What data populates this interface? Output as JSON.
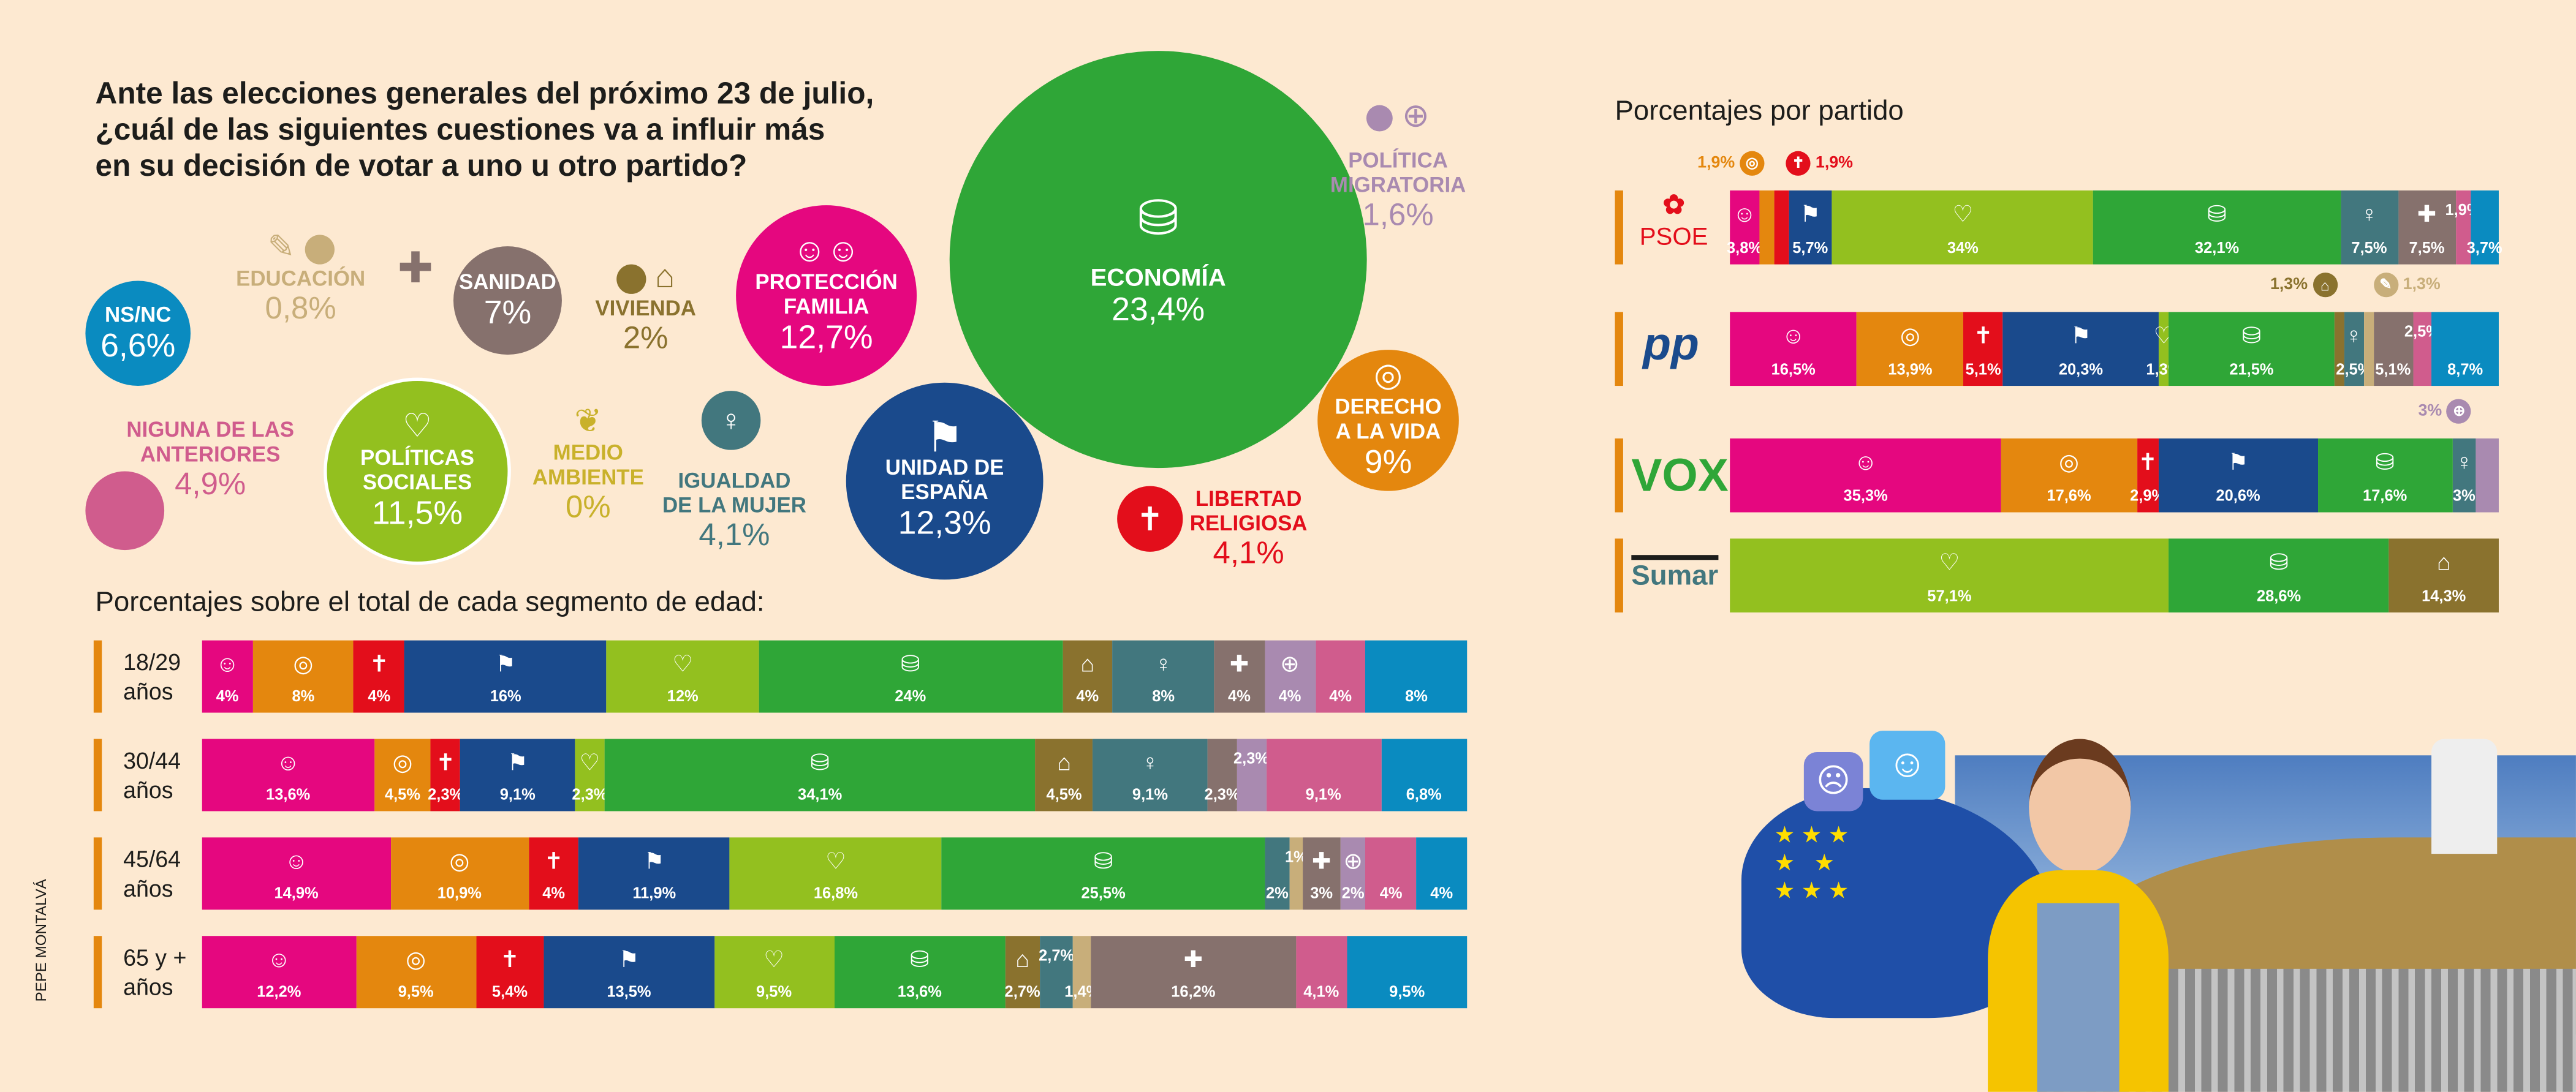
{
  "title": [
    "Ante las elecciones generales del próximo 23 de julio,",
    "¿cuál de las siguientes cuestiones va a influir más",
    "en su decisión de votar a uno u otro partido?"
  ],
  "colors": {
    "familia": "#e5077f",
    "vida": "#e4870e",
    "religiosa": "#e30e1b",
    "unidad": "#1a4a8c",
    "sociales": "#93c01f",
    "economia": "#2fa637",
    "vivienda": "#8a722e",
    "igualdad": "#42777e",
    "educacion": "#c8ae7a",
    "sanidad": "#86716d",
    "migratoria": "#a98ab0",
    "ninguna": "#d05c8d",
    "nsnc": "#0a8bc0",
    "medio": "#c9b12b"
  },
  "icons": {
    "familia": "☺",
    "vida": "◎",
    "religiosa": "✝",
    "unidad": "⚑",
    "sociales": "♡",
    "economia": "⛁",
    "vivienda": "⌂",
    "igualdad": "♀",
    "educacion": "✎",
    "sanidad": "✚",
    "migratoria": "⊕",
    "ninguna": "",
    "nsnc": "",
    "medio": "❦"
  },
  "bubbles": {
    "nsnc": {
      "label": "NS/NC",
      "value": "6,6%"
    },
    "educacion": {
      "label": "EDUCACIÓN",
      "value": "0,8%"
    },
    "sanidad": {
      "label": "SANIDAD",
      "value": "7%"
    },
    "vivienda": {
      "label": "VIVIENDA",
      "value": "2%"
    },
    "familia": {
      "label1": "PROTECCIÓN",
      "label2": "FAMILIA",
      "value": "12,7%"
    },
    "economia": {
      "label": "ECONOMÍA",
      "value": "23,4%"
    },
    "migratoria": {
      "label1": "POLÍTICA",
      "label2": "MIGRATORIA",
      "value": "1,6%"
    },
    "vida": {
      "label1": "DERECHO",
      "label2": "A LA VIDA",
      "value": "9%"
    },
    "religiosa": {
      "label1": "LIBERTAD",
      "label2": "RELIGIOSA",
      "value": "4,1%"
    },
    "unidad": {
      "label1": "UNIDAD DE",
      "label2": "ESPAÑA",
      "value": "12,3%"
    },
    "igualdad": {
      "label1": "IGUALDAD",
      "label2": "DE LA MUJER",
      "value": "4,1%"
    },
    "medio": {
      "label1": "MEDIO",
      "label2": "AMBIENTE",
      "value": "0%"
    },
    "sociales": {
      "label1": "POLÍTICAS",
      "label2": "SOCIALES",
      "value": "11,5%"
    },
    "ninguna": {
      "label1": "NIGUNA DE LAS",
      "label2": "ANTERIORES",
      "value": "4,9%"
    }
  },
  "age_section_title": "Porcentajes sobre el total de cada segmento de edad:",
  "party_section_title": "Porcentajes por partido",
  "credit": "PEPE MONTALVÁ",
  "chart_data": [
    {
      "type": "bar",
      "orientation": "horizontal-stacked",
      "title": "Porcentajes sobre el total de cada segmento de edad:",
      "unit": "%",
      "rows": [
        {
          "label1": "18/29",
          "label2": "años",
          "segments": [
            [
              "familia",
              4,
              "4%"
            ],
            [
              "vida",
              8,
              "8%"
            ],
            [
              "religiosa",
              4,
              "4%"
            ],
            [
              "unidad",
              16,
              "16%"
            ],
            [
              "sociales",
              12,
              "12%"
            ],
            [
              "economia",
              24,
              "24%"
            ],
            [
              "vivienda",
              4,
              "4%"
            ],
            [
              "igualdad",
              8,
              "8%"
            ],
            [
              "sanidad",
              4,
              "4%"
            ],
            [
              "migratoria",
              4,
              "4%"
            ],
            [
              "ninguna",
              4,
              "4%"
            ],
            [
              "nsnc",
              8,
              "8%"
            ]
          ]
        },
        {
          "label1": "30/44",
          "label2": "años",
          "segments": [
            [
              "familia",
              13.6,
              "13,6%"
            ],
            [
              "vida",
              4.5,
              "4,5%"
            ],
            [
              "religiosa",
              2.3,
              "2,3%"
            ],
            [
              "unidad",
              9.1,
              "9,1%"
            ],
            [
              "sociales",
              2.3,
              "2,3%"
            ],
            [
              "economia",
              34.1,
              "34,1%"
            ],
            [
              "vivienda",
              4.5,
              "4,5%"
            ],
            [
              "igualdad",
              9.1,
              "9,1%"
            ],
            [
              "sanidad",
              2.3,
              "2,3%"
            ],
            [
              "migratoria",
              2.3,
              "2,3%"
            ],
            [
              "ninguna",
              9.1,
              "9,1%"
            ],
            [
              "nsnc",
              6.8,
              "6,8%"
            ]
          ]
        },
        {
          "label1": "45/64",
          "label2": "años",
          "segments": [
            [
              "familia",
              14.9,
              "14,9%"
            ],
            [
              "vida",
              10.9,
              "10,9%"
            ],
            [
              "religiosa",
              4,
              "4%"
            ],
            [
              "unidad",
              11.9,
              "11,9%"
            ],
            [
              "sociales",
              16.8,
              "16,8%"
            ],
            [
              "economia",
              25.5,
              "25,5%"
            ],
            [
              "igualdad",
              2,
              "2%"
            ],
            [
              "educacion",
              1,
              "1%"
            ],
            [
              "sanidad",
              3,
              "3%"
            ],
            [
              "migratoria",
              2,
              "2%"
            ],
            [
              "ninguna",
              4,
              "4%"
            ],
            [
              "nsnc",
              4,
              "4%"
            ]
          ]
        },
        {
          "label1": "65 y +",
          "label2": "años",
          "segments": [
            [
              "familia",
              12.2,
              "12,2%"
            ],
            [
              "vida",
              9.5,
              "9,5%"
            ],
            [
              "religiosa",
              5.4,
              "5,4%"
            ],
            [
              "unidad",
              13.5,
              "13,5%"
            ],
            [
              "sociales",
              9.5,
              "9,5%"
            ],
            [
              "economia",
              13.6,
              "13,6%"
            ],
            [
              "vivienda",
              2.7,
              "2,7%"
            ],
            [
              "igualdad",
              2.7,
              "2,7%"
            ],
            [
              "educacion",
              1.4,
              "1,4%"
            ],
            [
              "sanidad",
              16.2,
              "16,2%"
            ],
            [
              "ninguna",
              4.1,
              "4,1%"
            ],
            [
              "nsnc",
              9.5,
              "9,5%"
            ]
          ]
        }
      ]
    },
    {
      "type": "bar",
      "orientation": "horizontal-stacked",
      "title": "Porcentajes por partido",
      "unit": "%",
      "rows": [
        {
          "party": "PSOE",
          "segments": [
            [
              "familia",
              3.8,
              "3,8%"
            ],
            [
              "vida",
              1.9,
              "1,9%",
              "ext"
            ],
            [
              "religiosa",
              1.9,
              "1,9%",
              "ext"
            ],
            [
              "unidad",
              5.7,
              "5,7%"
            ],
            [
              "sociales",
              34,
              "34%"
            ],
            [
              "economia",
              32.1,
              "32,1%"
            ],
            [
              "igualdad",
              7.5,
              "7,5%"
            ],
            [
              "sanidad",
              7.5,
              "7,5%"
            ],
            [
              "ninguna",
              1.9,
              "1,9%"
            ],
            [
              "nsnc",
              3.7,
              "3,7%"
            ]
          ]
        },
        {
          "party": "PP",
          "segments": [
            [
              "familia",
              16.5,
              "16,5%"
            ],
            [
              "vida",
              13.9,
              "13,9%"
            ],
            [
              "religiosa",
              5.1,
              "5,1%"
            ],
            [
              "unidad",
              20.3,
              "20,3%"
            ],
            [
              "sociales",
              1.3,
              "1,3%"
            ],
            [
              "economia",
              21.5,
              "21,5%"
            ],
            [
              "vivienda",
              1.3,
              "1,3%",
              "ext"
            ],
            [
              "igualdad",
              2.5,
              "2,5%"
            ],
            [
              "educacion",
              1.3,
              "1,3%",
              "ext"
            ],
            [
              "sanidad",
              5.1,
              "5,1%"
            ],
            [
              "ninguna",
              2.5,
              "2,5%"
            ],
            [
              "nsnc",
              8.7,
              "8,7%"
            ]
          ]
        },
        {
          "party": "VOX",
          "segments": [
            [
              "familia",
              35.3,
              "35,3%"
            ],
            [
              "vida",
              17.6,
              "17,6%"
            ],
            [
              "religiosa",
              2.9,
              "2,9%"
            ],
            [
              "unidad",
              20.6,
              "20,6%"
            ],
            [
              "economia",
              17.6,
              "17,6%"
            ],
            [
              "igualdad",
              3,
              "3%"
            ],
            [
              "migratoria",
              3,
              "3%",
              "ext"
            ]
          ]
        },
        {
          "party": "Sumar",
          "segments": [
            [
              "sociales",
              57.1,
              "57,1%"
            ],
            [
              "economia",
              28.6,
              "28,6%"
            ],
            [
              "vivienda",
              14.3,
              "14,3%"
            ]
          ]
        }
      ]
    }
  ]
}
